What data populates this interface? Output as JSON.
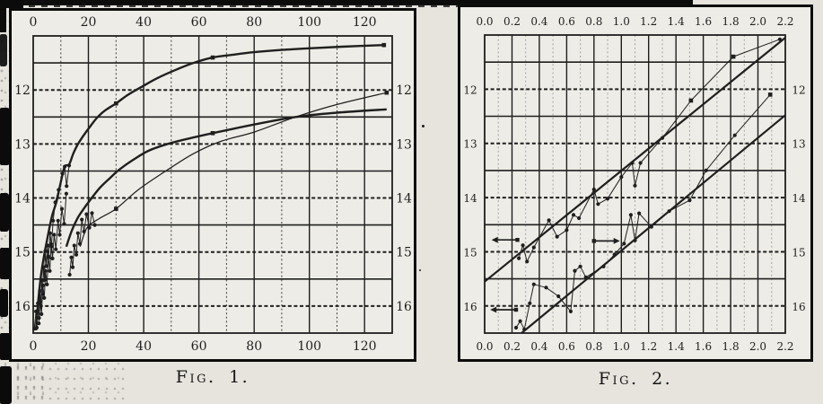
{
  "page": {
    "colors": {
      "paper": "#e7e4de",
      "figure_paper": "#eeece6",
      "ink": "#1f1f1f",
      "frame": "#0c0c0c"
    }
  },
  "chart_data": [
    {
      "figure": "fig1",
      "type": "line",
      "title": "Fig. 1.",
      "xlabel": "",
      "ylabel": "",
      "x_axis": {
        "range": [
          0,
          130
        ],
        "grid_step": 10,
        "major_step": 20,
        "tick_values": [
          0,
          20,
          40,
          60,
          80,
          100,
          120
        ],
        "tick_labels": [
          "0",
          "20",
          "40",
          "60",
          "80",
          "100",
          "120"
        ],
        "labels_position": "top and bottom"
      },
      "y_axis": {
        "range": [
          11,
          16.5
        ],
        "grid_step": 0.5,
        "tick_values": [
          12,
          13,
          14,
          15,
          16
        ],
        "tick_labels": [
          "12",
          "13",
          "14",
          "15",
          "16"
        ],
        "labels_position": "left and right",
        "y_increases_downward": true
      },
      "grid": true,
      "legend": "none",
      "series": [
        {
          "name": "bright-curve",
          "style": "smooth-heavy",
          "points": [
            [
              1,
              16.45
            ],
            [
              1.5,
              16.1
            ],
            [
              2,
              15.8
            ],
            [
              2.6,
              15.52
            ],
            [
              3.2,
              15.3
            ],
            [
              4,
              15.05
            ],
            [
              5,
              14.78
            ],
            [
              6,
              14.52
            ],
            [
              7,
              14.3
            ],
            [
              8.5,
              14.05
            ],
            [
              10,
              13.7
            ],
            [
              11.4,
              13.42
            ],
            [
              13,
              13.38
            ],
            [
              14.5,
              13.18
            ],
            [
              16,
              13.02
            ],
            [
              18,
              12.86
            ],
            [
              20,
              12.72
            ],
            [
              23,
              12.52
            ],
            [
              26,
              12.38
            ],
            [
              30,
              12.25
            ],
            [
              34,
              12.1
            ],
            [
              39,
              11.95
            ],
            [
              45,
              11.78
            ],
            [
              52,
              11.62
            ],
            [
              58,
              11.5
            ],
            [
              65,
              11.4
            ],
            [
              72,
              11.35
            ],
            [
              80,
              11.3
            ],
            [
              90,
              11.26
            ],
            [
              100,
              11.23
            ],
            [
              112,
              11.2
            ],
            [
              127,
              11.17
            ]
          ],
          "square_markers": [
            [
              30,
              12.25
            ],
            [
              65,
              11.4
            ],
            [
              127,
              11.17
            ]
          ]
        },
        {
          "name": "faint-curve",
          "style": "smooth-heavy",
          "points": [
            [
              12,
              14.9
            ],
            [
              14,
              14.6
            ],
            [
              16,
              14.38
            ],
            [
              18,
              14.22
            ],
            [
              20,
              14.08
            ],
            [
              24,
              13.82
            ],
            [
              28,
              13.62
            ],
            [
              31,
              13.48
            ],
            [
              36,
              13.3
            ],
            [
              42,
              13.12
            ],
            [
              50,
              12.98
            ],
            [
              58,
              12.88
            ],
            [
              65,
              12.8
            ],
            [
              80,
              12.64
            ],
            [
              95,
              12.5
            ],
            [
              110,
              12.42
            ],
            [
              128,
              12.36
            ]
          ],
          "square_markers": [
            [
              65,
              12.8
            ]
          ]
        },
        {
          "name": "comparison-line",
          "style": "thin",
          "points": [
            [
              17,
              14.9
            ],
            [
              19.5,
              14.55
            ],
            [
              24,
              14.38
            ],
            [
              30,
              14.2
            ],
            [
              38,
              13.85
            ],
            [
              48,
              13.5
            ],
            [
              58,
              13.18
            ],
            [
              68,
              12.95
            ],
            [
              80,
              12.78
            ],
            [
              95,
              12.5
            ],
            [
              110,
              12.27
            ],
            [
              128,
              12.05
            ]
          ],
          "square_markers": [
            [
              30,
              14.2
            ],
            [
              128,
              12.05
            ]
          ]
        },
        {
          "name": "obs-run-a",
          "style": "zigzag",
          "dot_markers": true,
          "points": [
            [
              0.4,
              16.42
            ],
            [
              1,
              16.1
            ],
            [
              1.3,
              16.4
            ],
            [
              1.7,
              15.95
            ],
            [
              2.1,
              16.22
            ],
            [
              2.4,
              15.72
            ],
            [
              2.8,
              16.0
            ],
            [
              3.1,
              15.52
            ],
            [
              3.4,
              15.78
            ],
            [
              3.7,
              15.28
            ],
            [
              4.1,
              15.52
            ],
            [
              4.4,
              14.98
            ],
            [
              4.8,
              15.26
            ],
            [
              5.2,
              14.88
            ],
            [
              5.6,
              15.1
            ],
            [
              6.1,
              14.65
            ],
            [
              6.6,
              14.9
            ],
            [
              7.2,
              14.42
            ],
            [
              8,
              14.08
            ],
            [
              9.2,
              13.85
            ],
            [
              10.6,
              13.55
            ],
            [
              11.4,
              13.42
            ],
            [
              12.1,
              13.78
            ],
            [
              13,
              13.4
            ]
          ]
        },
        {
          "name": "obs-run-b",
          "style": "zigzag",
          "dot_markers": true,
          "points": [
            [
              2,
              16.32
            ],
            [
              2.5,
              15.92
            ],
            [
              3,
              16.15
            ],
            [
              3.5,
              15.62
            ],
            [
              4,
              15.85
            ],
            [
              4.5,
              15.35
            ],
            [
              5,
              15.6
            ],
            [
              5.5,
              15.08
            ],
            [
              6,
              15.35
            ],
            [
              6.5,
              14.85
            ],
            [
              7,
              15.12
            ],
            [
              7.6,
              14.68
            ],
            [
              8.2,
              14.95
            ],
            [
              9,
              14.42
            ],
            [
              9.6,
              14.68
            ],
            [
              10.4,
              14.2
            ],
            [
              11.2,
              14.48
            ],
            [
              12,
              13.92
            ]
          ]
        },
        {
          "name": "obs-run-c",
          "style": "zigzag",
          "dot_markers": true,
          "points": [
            [
              13.2,
              15.42
            ],
            [
              13.8,
              15.1
            ],
            [
              14.3,
              15.28
            ],
            [
              14.9,
              14.88
            ],
            [
              15.6,
              15.05
            ],
            [
              16.2,
              14.65
            ],
            [
              16.9,
              14.85
            ],
            [
              17.6,
              14.4
            ],
            [
              18.4,
              14.62
            ],
            [
              19.3,
              14.3
            ],
            [
              20.3,
              14.55
            ],
            [
              21.3,
              14.28
            ],
            [
              22.3,
              14.5
            ]
          ]
        }
      ]
    },
    {
      "figure": "fig2",
      "type": "line",
      "title": "Fig. 2.",
      "xlabel": "",
      "ylabel": "",
      "x_axis": {
        "range": [
          0,
          2.2
        ],
        "grid_step": 0.1,
        "major_step": 0.2,
        "tick_values": [
          0,
          0.2,
          0.4,
          0.6,
          0.8,
          1.0,
          1.2,
          1.4,
          1.6,
          1.8,
          2.0,
          2.2
        ],
        "tick_labels": [
          "0.0",
          "0.2",
          "0.4",
          "0.6",
          "0.8",
          "1.0",
          "1.2",
          "1.4",
          "1.6",
          "1.8",
          "2.0",
          "2.2"
        ],
        "labels_position": "top and bottom"
      },
      "y_axis": {
        "range": [
          11,
          16.5
        ],
        "grid_step": 0.5,
        "tick_values": [
          12,
          13,
          14,
          15,
          16
        ],
        "tick_labels": [
          "12",
          "13",
          "14",
          "15",
          "16"
        ],
        "labels_position": "left and right",
        "y_increases_downward": true
      },
      "grid": true,
      "legend": "none",
      "series": [
        {
          "name": "upper-line",
          "style": "straight-heavy",
          "points": [
            [
              0,
              15.55
            ],
            [
              2.2,
              11.05
            ]
          ]
        },
        {
          "name": "lower-line",
          "style": "straight-heavy",
          "points": [
            [
              0.27,
              16.5
            ],
            [
              2.2,
              12.48
            ]
          ]
        },
        {
          "name": "obs-zigzag-upper",
          "style": "zigzag",
          "dot_markers": true,
          "points": [
            [
              0.25,
              15.12
            ],
            [
              0.28,
              14.88
            ],
            [
              0.31,
              15.18
            ],
            [
              0.36,
              14.92
            ],
            [
              0.47,
              14.42
            ],
            [
              0.53,
              14.72
            ],
            [
              0.6,
              14.6
            ],
            [
              0.65,
              14.32
            ],
            [
              0.69,
              14.38
            ],
            [
              0.8,
              13.85
            ],
            [
              0.83,
              14.12
            ],
            [
              0.9,
              14.02
            ],
            [
              1.0,
              13.62
            ],
            [
              1.08,
              13.36
            ],
            [
              1.1,
              13.78
            ],
            [
              1.14,
              13.36
            ],
            [
              1.3,
              12.9
            ],
            [
              1.51,
              12.21
            ],
            [
              1.82,
              11.4
            ],
            [
              2.16,
              11.08
            ]
          ],
          "square_markers": [
            [
              1.51,
              12.21
            ],
            [
              1.82,
              11.4
            ]
          ]
        },
        {
          "name": "obs-zigzag-lower",
          "style": "zigzag",
          "dot_markers": true,
          "points": [
            [
              0.23,
              16.4
            ],
            [
              0.26,
              16.28
            ],
            [
              0.29,
              16.43
            ],
            [
              0.33,
              15.95
            ],
            [
              0.36,
              15.6
            ],
            [
              0.45,
              15.66
            ],
            [
              0.54,
              15.82
            ],
            [
              0.63,
              16.1
            ],
            [
              0.66,
              15.35
            ],
            [
              0.7,
              15.27
            ],
            [
              0.74,
              15.47
            ],
            [
              0.87,
              15.27
            ],
            [
              0.95,
              15.05
            ],
            [
              1.02,
              14.85
            ],
            [
              1.07,
              14.32
            ],
            [
              1.1,
              14.79
            ],
            [
              1.13,
              14.29
            ],
            [
              1.22,
              14.54
            ],
            [
              1.35,
              14.25
            ],
            [
              1.5,
              14.05
            ],
            [
              1.62,
              13.5
            ],
            [
              1.83,
              12.85
            ],
            [
              2.09,
              12.1
            ]
          ],
          "square_markers": [
            [
              2.09,
              12.1
            ]
          ]
        }
      ],
      "arrows": [
        {
          "y_mag": 14.78,
          "x_from": 0.24,
          "x_to": 0.08,
          "direction": "left"
        },
        {
          "y_mag": 14.8,
          "x_from": 0.8,
          "x_to": 0.96,
          "direction": "right"
        },
        {
          "y_mag": 16.07,
          "x_from": 0.23,
          "x_to": 0.07,
          "direction": "left"
        }
      ]
    }
  ]
}
